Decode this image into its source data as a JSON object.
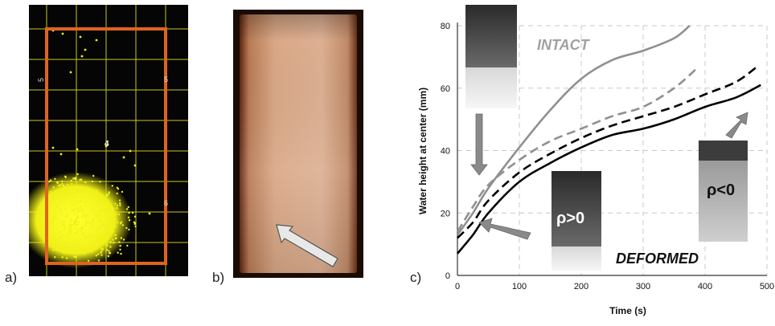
{
  "panels": {
    "a": {
      "label": "a)",
      "grid_labels": [
        "5",
        "5",
        "6",
        "4"
      ]
    },
    "b": {
      "label": "b)"
    },
    "c": {
      "label": "c)"
    }
  },
  "colors": {
    "scatter": "#f2f21a",
    "box": "#e0641e",
    "grid": "#c8c81e",
    "intact": "#909090",
    "deformed": "#000000"
  },
  "chart_data": {
    "type": "line",
    "xlabel": "Time (s)",
    "ylabel": "Water height at center (mm)",
    "xlim": [
      0,
      500
    ],
    "ylim": [
      0,
      80
    ],
    "xticks": [
      0,
      100,
      200,
      300,
      400,
      500
    ],
    "yticks": [
      0,
      20,
      40,
      60,
      80
    ],
    "grid": true,
    "series": [
      {
        "group": "intact",
        "style": "solid",
        "color": "#909090",
        "x": [
          0,
          25,
          50,
          100,
          150,
          200,
          250,
          300,
          350,
          375
        ],
        "y": [
          13,
          20,
          28,
          41,
          53,
          63,
          69,
          72,
          76,
          80
        ]
      },
      {
        "group": "intact",
        "style": "dashed",
        "color": "#909090",
        "x": [
          0,
          25,
          50,
          100,
          150,
          200,
          250,
          300,
          350,
          385
        ],
        "y": [
          14,
          22,
          29,
          37,
          43,
          47,
          51,
          54,
          60,
          66
        ]
      },
      {
        "group": "deformed",
        "style": "dashed",
        "color": "#000000",
        "x": [
          0,
          25,
          50,
          100,
          150,
          200,
          250,
          300,
          350,
          400,
          450,
          485
        ],
        "y": [
          12,
          17,
          24,
          33,
          39,
          44,
          48,
          51,
          54,
          58,
          62,
          67
        ]
      },
      {
        "group": "deformed",
        "style": "solid",
        "color": "#000000",
        "x": [
          0,
          25,
          50,
          100,
          150,
          200,
          250,
          300,
          350,
          400,
          450,
          490
        ],
        "y": [
          7,
          13,
          20,
          30,
          36,
          41,
          45,
          47,
          50,
          54,
          57,
          61
        ]
      }
    ],
    "annotations": [
      {
        "text": "INTACT",
        "at": [
          160,
          74
        ]
      },
      {
        "text": "DEFORMED",
        "at": [
          245,
          5
        ]
      },
      {
        "text": "ρ>0",
        "at": [
          165,
          17
        ]
      },
      {
        "text": "ρ<0",
        "at": [
          430,
          28
        ]
      }
    ]
  }
}
